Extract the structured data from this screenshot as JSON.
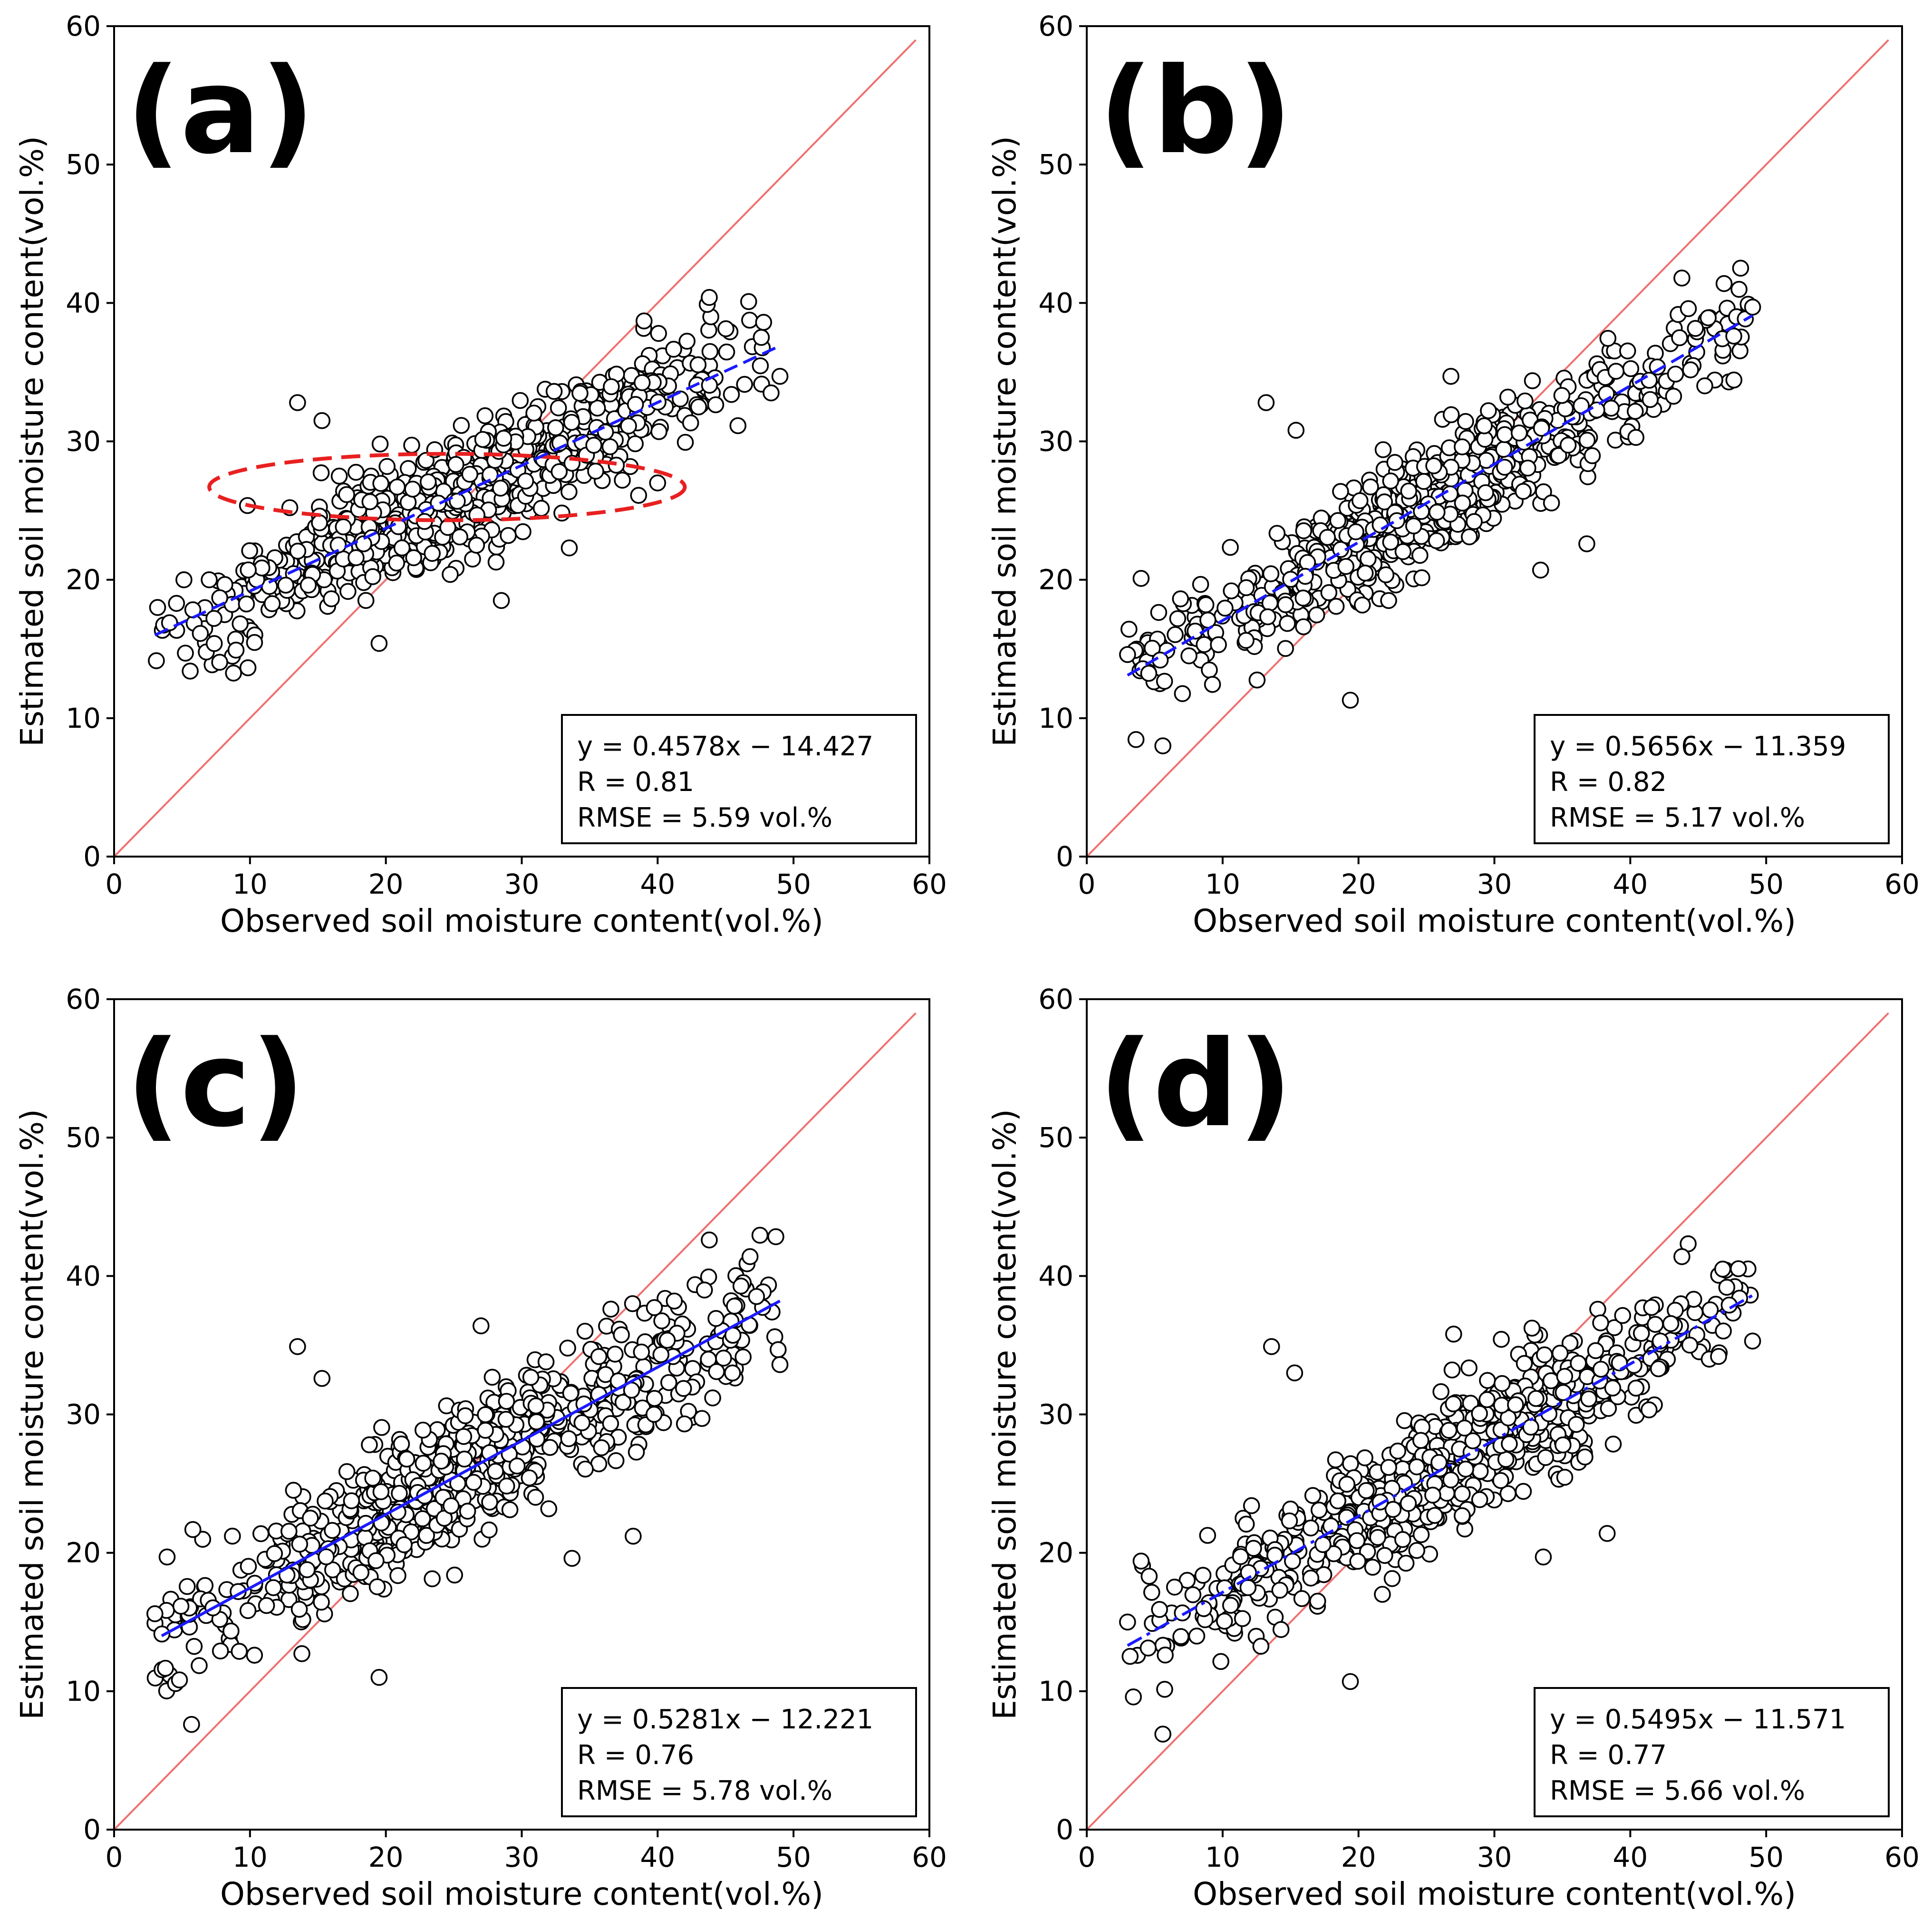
{
  "figure": {
    "x_label": "Observed soil moisture content(vol.%)",
    "y_label": "Estimated soil moisture content(vol.%)",
    "axis_limits": [
      0,
      60
    ],
    "ticks": [
      "0",
      "10",
      "20",
      "30",
      "40",
      "50",
      "60"
    ]
  },
  "colors": {
    "points_edge": "#000000",
    "points_fill": "#ffffff",
    "one_to_one_line": "#f07070",
    "fit_line": "#1a1aff",
    "highlight_ellipse": "#e82020"
  },
  "chart_data": [
    {
      "type": "scatter",
      "panel_label": "(a)",
      "xlabel": "Observed soil moisture content(vol.%)",
      "ylabel": "Estimated soil moisture content(vol.%)",
      "xlim": [
        0,
        60
      ],
      "ylim": [
        0,
        60
      ],
      "reference_line": "1:1",
      "fit_line": {
        "x": [
          3,
          49
        ],
        "y": [
          16.0,
          36.9
        ],
        "style": "dashed"
      },
      "highlight_ellipse": {
        "cx": 24.5,
        "cy": 26.7,
        "rx": 17.5,
        "ry": 2.4
      },
      "stats": [
        "y = 0.4578x − 14.427",
        "R = 0.81",
        "RMSE = 5.59 vol.%"
      ],
      "point_cloud": {
        "n": 650,
        "seed": 101,
        "x_range": [
          3,
          49
        ],
        "slope": 0.4578,
        "intercept": 14.6,
        "spread": 3.8
      },
      "outliers": [
        [
          13.5,
          32.8
        ],
        [
          15.3,
          31.5
        ],
        [
          19.5,
          15.4
        ],
        [
          28.5,
          18.5
        ],
        [
          33.5,
          22.3
        ],
        [
          43.8,
          40.4
        ],
        [
          46.7,
          40.1
        ],
        [
          47.8,
          38.6
        ],
        [
          49.0,
          34.7
        ],
        [
          5.6,
          13.4
        ],
        [
          7.0,
          20.0
        ],
        [
          3.2,
          18.0
        ],
        [
          39.0,
          38.7
        ],
        [
          40.0,
          27.0
        ],
        [
          38.6,
          26.1
        ]
      ]
    },
    {
      "type": "scatter",
      "panel_label": "(b)",
      "xlabel": "Observed soil moisture content(vol.%)",
      "ylabel": "Estimated soil moisture content(vol.%)",
      "xlim": [
        0,
        60
      ],
      "ylim": [
        0,
        60
      ],
      "reference_line": "1:1",
      "fit_line": {
        "x": [
          3,
          49
        ],
        "y": [
          13.1,
          39.1
        ],
        "style": "dashed"
      },
      "stats": [
        "y = 0.5656x − 11.359",
        "R = 0.82",
        "RMSE = 5.17 vol.%"
      ],
      "point_cloud": {
        "n": 650,
        "seed": 202,
        "x_range": [
          3,
          49
        ],
        "slope": 0.5656,
        "intercept": 11.4,
        "spread": 3.5
      },
      "outliers": [
        [
          13.2,
          32.8
        ],
        [
          15.4,
          30.8
        ],
        [
          19.4,
          11.3
        ],
        [
          5.6,
          8.0
        ],
        [
          33.4,
          20.7
        ],
        [
          36.8,
          22.6
        ],
        [
          43.8,
          41.8
        ],
        [
          46.9,
          41.4
        ],
        [
          49.0,
          39.7
        ],
        [
          3.0,
          14.6
        ],
        [
          4.0,
          20.1
        ],
        [
          26.8,
          34.7
        ]
      ]
    },
    {
      "type": "scatter",
      "panel_label": "(c)",
      "xlabel": "Observed soil moisture content(vol.%)",
      "ylabel": "Estimated soil moisture content(vol.%)",
      "xlim": [
        0,
        60
      ],
      "ylim": [
        0,
        60
      ],
      "reference_line": "1:1",
      "fit_line": {
        "x": [
          3.5,
          49
        ],
        "y": [
          14.0,
          38.2
        ],
        "style": "solid"
      },
      "stats": [
        "y = 0.5281x − 12.221",
        "R = 0.76",
        "RMSE = 5.78 vol.%"
      ],
      "point_cloud": {
        "n": 700,
        "seed": 303,
        "x_range": [
          3,
          49
        ],
        "slope": 0.5281,
        "intercept": 12.2,
        "spread": 4.2
      },
      "outliers": [
        [
          13.5,
          34.9
        ],
        [
          15.3,
          32.6
        ],
        [
          19.5,
          11.0
        ],
        [
          5.7,
          7.6
        ],
        [
          33.7,
          19.6
        ],
        [
          38.2,
          21.2
        ],
        [
          43.8,
          42.6
        ],
        [
          46.8,
          41.4
        ],
        [
          49.0,
          33.6
        ],
        [
          3.0,
          15.6
        ],
        [
          3.9,
          19.7
        ],
        [
          27.0,
          36.4
        ]
      ]
    },
    {
      "type": "scatter",
      "panel_label": "(d)",
      "xlabel": "Observed soil moisture content(vol.%)",
      "ylabel": "Estimated soil moisture content(vol.%)",
      "xlim": [
        0,
        60
      ],
      "ylim": [
        0,
        60
      ],
      "reference_line": "1:1",
      "fit_line": {
        "x": [
          3,
          49
        ],
        "y": [
          13.3,
          38.6
        ],
        "style": "dash-dot"
      },
      "stats": [
        "y = 0.5495x − 11.571",
        "R = 0.77",
        "RMSE = 5.66 vol.%"
      ],
      "point_cloud": {
        "n": 700,
        "seed": 404,
        "x_range": [
          3,
          49
        ],
        "slope": 0.5495,
        "intercept": 11.6,
        "spread": 4.1
      },
      "outliers": [
        [
          13.6,
          34.9
        ],
        [
          15.3,
          33.0
        ],
        [
          19.4,
          10.7
        ],
        [
          5.6,
          6.9
        ],
        [
          33.6,
          19.7
        ],
        [
          38.3,
          21.4
        ],
        [
          43.8,
          41.4
        ],
        [
          46.8,
          40.5
        ],
        [
          49.0,
          35.3
        ],
        [
          3.0,
          15.0
        ],
        [
          4.0,
          19.4
        ],
        [
          27.0,
          35.8
        ]
      ]
    }
  ]
}
